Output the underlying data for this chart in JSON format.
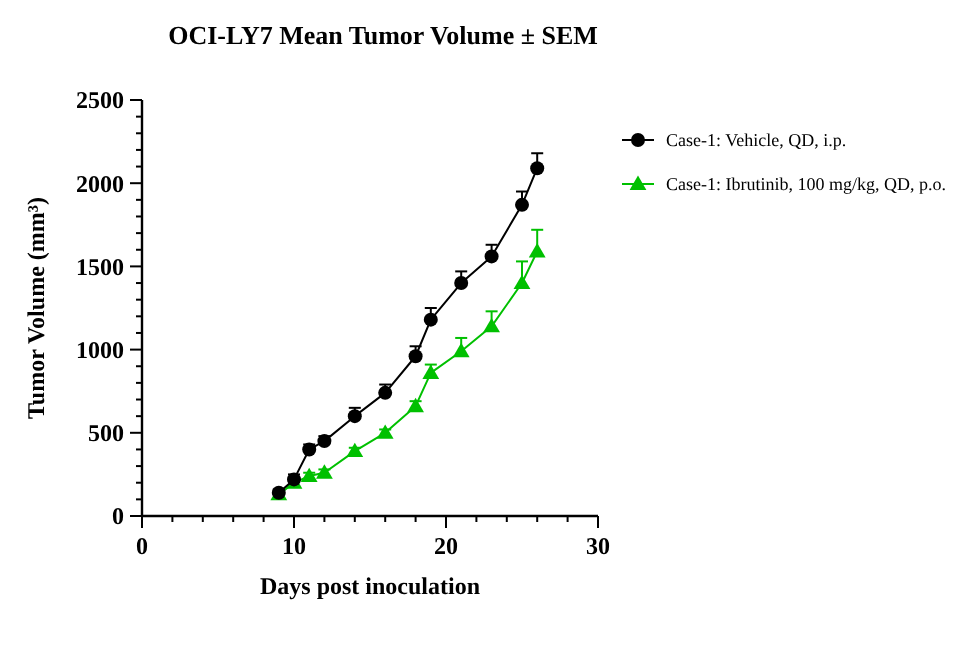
{
  "chart_data": {
    "type": "line",
    "title": "OCI-LY7 Mean Tumor Volume ± SEM",
    "xlabel": "Days post inoculation",
    "ylabel": "Tumor Volume (mm³)",
    "x": [
      9,
      10,
      11,
      12,
      14,
      16,
      18,
      19,
      21,
      23,
      25,
      26
    ],
    "series": [
      {
        "name": "Case-1: Vehicle, QD, i.p.",
        "color": "#000000",
        "marker": "circle",
        "values": [
          140,
          220,
          400,
          450,
          600,
          740,
          960,
          1180,
          1400,
          1560,
          1870,
          2090
        ],
        "errors": [
          20,
          30,
          30,
          30,
          50,
          50,
          60,
          70,
          70,
          70,
          80,
          90
        ]
      },
      {
        "name": "Case-1: Ibrutinib, 100 mg/kg, QD, p.o.",
        "color": "#00c000",
        "marker": "triangle",
        "values": [
          130,
          200,
          240,
          260,
          390,
          500,
          660,
          860,
          990,
          1140,
          1400,
          1590
        ],
        "errors": [
          10,
          15,
          20,
          20,
          20,
          20,
          30,
          50,
          80,
          90,
          130,
          130
        ]
      }
    ],
    "xlim": [
      0,
      30
    ],
    "xticks": [
      0,
      {
        "value": 2,
        "label": null
      },
      {
        "value": 4,
        "label": null
      },
      {
        "value": 6,
        "label": null
      },
      {
        "value": 8,
        "label": null
      },
      10,
      {
        "value": 12,
        "label": null
      },
      {
        "value": 14,
        "label": null
      },
      {
        "value": 16,
        "label": null
      },
      {
        "value": 18,
        "label": null
      },
      20,
      {
        "value": 22,
        "label": null
      },
      {
        "value": 24,
        "label": null
      },
      {
        "value": 26,
        "label": null
      },
      {
        "value": 28,
        "label": null
      },
      30
    ],
    "ylim": [
      0,
      2500
    ],
    "yticks": [
      0,
      {
        "value": 100,
        "label": null
      },
      {
        "value": 200,
        "label": null
      },
      {
        "value": 300,
        "label": null
      },
      {
        "value": 400,
        "label": null
      },
      500,
      {
        "value": 600,
        "label": null
      },
      {
        "value": 700,
        "label": null
      },
      {
        "value": 800,
        "label": null
      },
      {
        "value": 900,
        "label": null
      },
      1000,
      {
        "value": 1100,
        "label": null
      },
      {
        "value": 1200,
        "label": null
      },
      {
        "value": 1300,
        "label": null
      },
      {
        "value": 1400,
        "label": null
      },
      1500,
      {
        "value": 1600,
        "label": null
      },
      {
        "value": 1700,
        "label": null
      },
      {
        "value": 1800,
        "label": null
      },
      {
        "value": 1900,
        "label": null
      },
      2000,
      {
        "value": 2100,
        "label": null
      },
      {
        "value": 2200,
        "label": null
      },
      {
        "value": 2300,
        "label": null
      },
      {
        "value": 2400,
        "label": null
      },
      2500
    ],
    "legend": "top right",
    "grid": false
  }
}
